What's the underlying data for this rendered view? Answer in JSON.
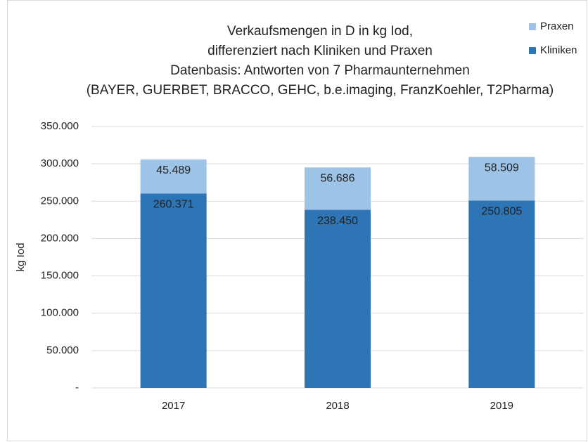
{
  "chart_data": {
    "type": "stacked_bar",
    "title": [
      "Verkaufsmengen in D in kg Iod,",
      "differenziert nach Kliniken und Praxen",
      "Datenbasis: Antworten von 7 Pharmaunternehmen",
      "(BAYER, GUERBET, BRACCO, GEHC, b.e.imaging, FranzKoehler, T2Pharma)"
    ],
    "y_label": "kg Iod",
    "categories": [
      "2017",
      "2018",
      "2019"
    ],
    "series": [
      {
        "name": "Kliniken",
        "color": "#2e75b6",
        "values": [
          260371,
          238450,
          250805
        ],
        "value_labels": [
          "260.371",
          "238.450",
          "250.805"
        ]
      },
      {
        "name": "Praxen",
        "color": "#9dc3e6",
        "values": [
          45489,
          56686,
          58509
        ],
        "value_labels": [
          "45.489",
          "56.686",
          "58.509"
        ]
      }
    ],
    "ylim": [
      0,
      350000
    ],
    "yticks": [
      {
        "value": 0,
        "label": "-"
      },
      {
        "value": 50000,
        "label": "50.000"
      },
      {
        "value": 100000,
        "label": "100.000"
      },
      {
        "value": 150000,
        "label": "150.000"
      },
      {
        "value": 200000,
        "label": "200.000"
      },
      {
        "value": 250000,
        "label": "250.000"
      },
      {
        "value": 300000,
        "label": "300.000"
      },
      {
        "value": 350000,
        "label": "350.000"
      }
    ],
    "grid": true,
    "legend": "top-right"
  }
}
